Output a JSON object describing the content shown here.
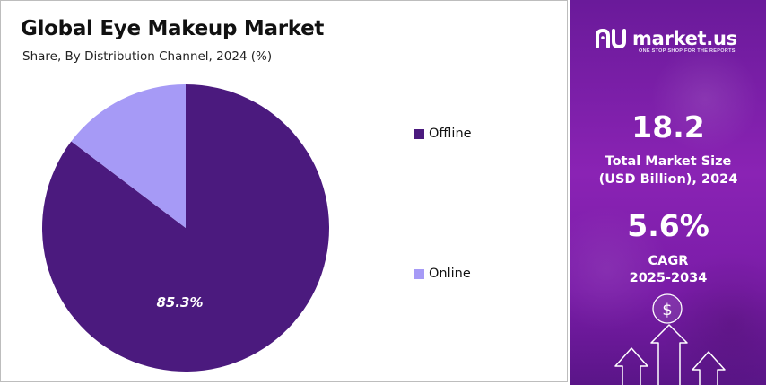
{
  "chart_data": {
    "type": "pie",
    "title": "Global Eye Makeup Market",
    "subtitle": "Share, By Distribution Channel, 2024 (%)",
    "slices": [
      {
        "label": "Offline",
        "value": 85.3,
        "display": "85.3%",
        "color": "#4b1a7e"
      },
      {
        "label": "Online",
        "value": 14.7,
        "color": "#a69af6"
      }
    ],
    "legend_position": "right"
  },
  "legend": {
    "items": [
      {
        "label": "Offline",
        "color": "#4b1a7e"
      },
      {
        "label": "Online",
        "color": "#a69af6"
      }
    ]
  },
  "side": {
    "brand": "market.us",
    "tagline": "ONE STOP SHOP FOR THE REPORTS",
    "market_size_value": "18.2",
    "market_size_label_1": "Total Market Size",
    "market_size_label_2": "(USD Billion), 2024",
    "cagr_value": "5.6%",
    "cagr_label_1": "CAGR",
    "cagr_label_2": "2025-2034",
    "icon": "dollar-growth-arrows-icon"
  }
}
